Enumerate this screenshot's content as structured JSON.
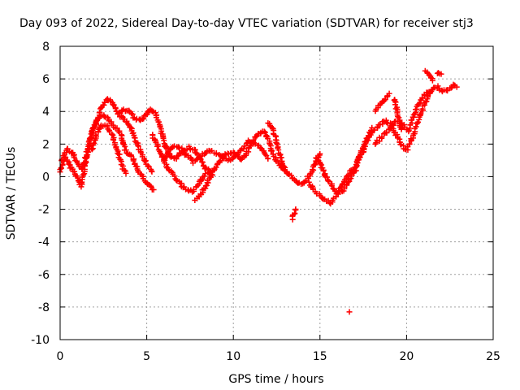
{
  "chart_data": {
    "type": "scatter",
    "title": "Day 093 of 2022, Sidereal Day-to-day VTEC variation (SDTVAR) for receiver stj3",
    "xlabel": "GPS time / hours",
    "ylabel": "SDTVAR / TECUs",
    "xlim": [
      0,
      25
    ],
    "ylim": [
      -10,
      8
    ],
    "xticks": [
      0,
      5,
      10,
      15,
      20,
      25
    ],
    "yticks": [
      -10,
      -8,
      -6,
      -4,
      -2,
      0,
      2,
      4,
      6,
      8
    ],
    "grid": true,
    "marker": "+",
    "series": [
      {
        "name": "SDTVAR",
        "color": "#ff0000",
        "tracks": [
          [
            [
              0.0,
              0.3
            ],
            [
              0.3,
              1.2
            ],
            [
              0.6,
              0.6
            ],
            [
              0.9,
              0.2
            ],
            [
              1.2,
              -0.6
            ],
            [
              1.5,
              1.0
            ],
            [
              1.8,
              2.4
            ],
            [
              2.1,
              3.4
            ],
            [
              2.4,
              4.2
            ],
            [
              2.7,
              4.8
            ],
            [
              3.0,
              4.6
            ],
            [
              3.3,
              3.9
            ],
            [
              3.6,
              3.6
            ],
            [
              4.0,
              3.2
            ],
            [
              4.3,
              2.4
            ],
            [
              4.6,
              1.6
            ],
            [
              5.0,
              0.8
            ],
            [
              5.3,
              0.3
            ]
          ],
          [
            [
              0.1,
              1.0
            ],
            [
              0.4,
              1.7
            ],
            [
              0.7,
              1.5
            ],
            [
              1.0,
              0.8
            ],
            [
              1.3,
              0.4
            ],
            [
              1.6,
              1.7
            ],
            [
              1.9,
              2.9
            ],
            [
              2.2,
              3.6
            ],
            [
              2.5,
              3.8
            ],
            [
              2.8,
              3.5
            ],
            [
              3.2,
              3.0
            ],
            [
              3.5,
              2.6
            ],
            [
              3.8,
              1.6
            ],
            [
              4.2,
              1.1
            ],
            [
              4.6,
              0.2
            ],
            [
              5.0,
              -0.4
            ],
            [
              5.4,
              -0.8
            ]
          ],
          [
            [
              1.8,
              1.6
            ],
            [
              2.1,
              2.6
            ],
            [
              2.4,
              3.1
            ],
            [
              2.7,
              3.1
            ],
            [
              3.0,
              2.6
            ],
            [
              3.3,
              1.6
            ],
            [
              3.6,
              0.6
            ],
            [
              3.8,
              0.2
            ]
          ],
          [
            [
              3.4,
              3.9
            ],
            [
              3.7,
              4.1
            ],
            [
              4.0,
              4.0
            ],
            [
              4.3,
              3.6
            ],
            [
              4.6,
              3.4
            ],
            [
              4.9,
              3.7
            ],
            [
              5.2,
              4.2
            ],
            [
              5.5,
              3.9
            ],
            [
              5.8,
              2.9
            ],
            [
              6.1,
              1.8
            ],
            [
              6.4,
              1.2
            ],
            [
              6.7,
              1.1
            ],
            [
              7.0,
              1.5
            ],
            [
              7.4,
              1.8
            ],
            [
              7.8,
              1.6
            ],
            [
              8.1,
              1.1
            ],
            [
              8.4,
              0.5
            ],
            [
              8.7,
              0.3
            ]
          ],
          [
            [
              5.3,
              2.6
            ],
            [
              5.6,
              2.0
            ],
            [
              5.9,
              1.2
            ],
            [
              6.2,
              0.6
            ],
            [
              6.5,
              0.1
            ],
            [
              6.9,
              -0.4
            ],
            [
              7.2,
              -0.7
            ],
            [
              7.6,
              -0.9
            ],
            [
              7.9,
              -0.6
            ],
            [
              8.2,
              -0.1
            ],
            [
              8.5,
              0.2
            ],
            [
              8.8,
              0.1
            ]
          ],
          [
            [
              7.8,
              -1.4
            ],
            [
              8.1,
              -1.1
            ],
            [
              8.4,
              -0.6
            ],
            [
              8.7,
              0.1
            ],
            [
              9.0,
              0.6
            ],
            [
              9.3,
              1.0
            ],
            [
              9.6,
              1.4
            ],
            [
              9.9,
              1.5
            ],
            [
              10.2,
              1.3
            ],
            [
              10.5,
              1.0
            ],
            [
              10.8,
              1.5
            ],
            [
              11.1,
              2.2
            ],
            [
              11.4,
              2.6
            ],
            [
              11.7,
              2.8
            ],
            [
              12.0,
              2.4
            ],
            [
              12.2,
              1.6
            ],
            [
              12.5,
              1.0
            ],
            [
              12.8,
              0.6
            ],
            [
              13.1,
              0.2
            ]
          ],
          [
            [
              6.0,
              1.0
            ],
            [
              6.3,
              1.6
            ],
            [
              6.7,
              1.9
            ],
            [
              7.0,
              1.7
            ],
            [
              7.3,
              1.3
            ],
            [
              7.7,
              0.9
            ],
            [
              8.1,
              1.2
            ],
            [
              8.5,
              1.6
            ],
            [
              8.9,
              1.5
            ],
            [
              9.3,
              1.2
            ],
            [
              9.7,
              1.0
            ],
            [
              10.1,
              1.2
            ],
            [
              10.5,
              1.7
            ],
            [
              10.9,
              2.2
            ],
            [
              11.3,
              2.0
            ],
            [
              11.7,
              1.6
            ],
            [
              12.0,
              1.1
            ]
          ],
          [
            [
              12.0,
              3.3
            ],
            [
              12.3,
              2.9
            ],
            [
              12.5,
              2.0
            ],
            [
              12.8,
              1.0
            ],
            [
              13.0,
              0.4
            ],
            [
              13.3,
              0.0
            ],
            [
              13.6,
              -0.3
            ],
            [
              13.9,
              -0.5
            ],
            [
              14.2,
              -0.3
            ],
            [
              14.5,
              0.3
            ],
            [
              14.8,
              1.0
            ],
            [
              15.0,
              1.4
            ]
          ],
          [
            [
              13.4,
              -2.6
            ],
            [
              13.6,
              -2.0
            ]
          ],
          [
            [
              14.8,
              1.2
            ],
            [
              15.1,
              0.6
            ],
            [
              15.4,
              -0.1
            ],
            [
              15.7,
              -0.6
            ],
            [
              16.0,
              -1.0
            ],
            [
              16.3,
              -0.9
            ],
            [
              16.6,
              -0.4
            ],
            [
              16.9,
              0.3
            ],
            [
              17.2,
              1.0
            ],
            [
              17.5,
              1.6
            ],
            [
              17.8,
              2.4
            ],
            [
              18.0,
              3.0
            ]
          ],
          [
            [
              14.4,
              -0.4
            ],
            [
              14.7,
              -0.9
            ],
            [
              15.0,
              -1.2
            ],
            [
              15.3,
              -1.4
            ],
            [
              15.6,
              -1.6
            ],
            [
              15.9,
              -1.3
            ],
            [
              16.2,
              -0.7
            ],
            [
              16.5,
              -0.1
            ],
            [
              16.8,
              0.4
            ]
          ],
          [
            [
              17.0,
              0.2
            ],
            [
              17.3,
              1.3
            ],
            [
              17.6,
              2.2
            ],
            [
              17.9,
              2.6
            ],
            [
              18.2,
              2.9
            ],
            [
              18.5,
              3.2
            ],
            [
              18.8,
              3.4
            ],
            [
              19.1,
              3.2
            ],
            [
              19.4,
              2.6
            ],
            [
              19.7,
              1.9
            ],
            [
              20.0,
              1.6
            ],
            [
              20.3,
              2.3
            ],
            [
              20.6,
              3.2
            ],
            [
              20.9,
              4.1
            ],
            [
              21.2,
              4.9
            ],
            [
              21.5,
              5.4
            ],
            [
              21.8,
              5.5
            ],
            [
              22.1,
              5.2
            ],
            [
              22.4,
              5.4
            ],
            [
              22.7,
              5.6
            ],
            [
              22.9,
              5.5
            ]
          ],
          [
            [
              18.2,
              2.0
            ],
            [
              18.6,
              2.5
            ],
            [
              19.0,
              2.9
            ],
            [
              19.4,
              3.4
            ],
            [
              19.8,
              3.2
            ],
            [
              20.1,
              2.8
            ],
            [
              20.4,
              3.7
            ],
            [
              20.7,
              4.5
            ],
            [
              21.0,
              5.0
            ],
            [
              21.3,
              5.2
            ]
          ],
          [
            [
              18.2,
              4.1
            ],
            [
              18.5,
              4.5
            ],
            [
              18.8,
              4.8
            ],
            [
              19.0,
              5.1
            ]
          ],
          [
            [
              19.3,
              4.8
            ],
            [
              19.5,
              3.8
            ],
            [
              19.7,
              2.9
            ]
          ],
          [
            [
              21.1,
              6.5
            ],
            [
              21.3,
              6.3
            ],
            [
              21.5,
              5.9
            ]
          ],
          [
            [
              21.8,
              6.4
            ],
            [
              22.0,
              6.3
            ]
          ],
          [
            [
              16.7,
              -8.3
            ]
          ]
        ]
      }
    ]
  }
}
